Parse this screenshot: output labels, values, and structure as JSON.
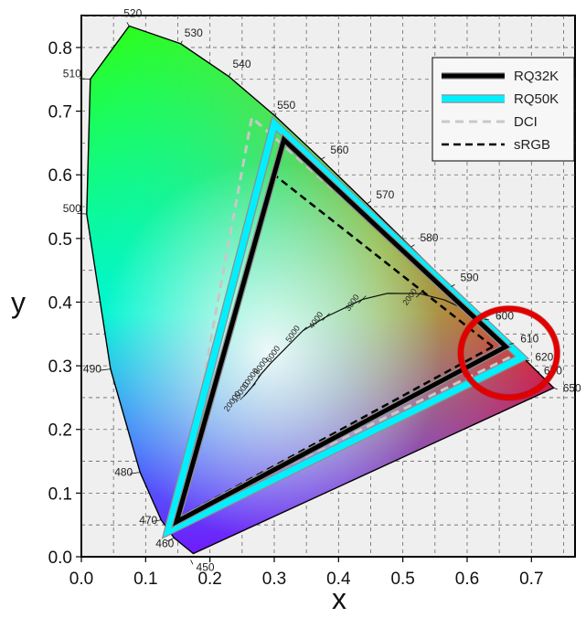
{
  "chart_data": {
    "type": "line",
    "xlabel": "x",
    "ylabel": "y",
    "xlim": [
      0.0,
      0.75
    ],
    "ylim": [
      0.0,
      0.85
    ],
    "xticks": [
      "0.0",
      "0.1",
      "0.2",
      "0.3",
      "0.4",
      "0.5",
      "0.6",
      "0.7"
    ],
    "yticks": [
      "0.0",
      "0.1",
      "0.2",
      "0.3",
      "0.4",
      "0.5",
      "0.6",
      "0.7",
      "0.8"
    ],
    "grid": true,
    "legend_position": "top-right",
    "series": [
      {
        "name": "RQ32K",
        "style": "solid",
        "color": "#000000",
        "points": [
          [
            0.66,
            0.33
          ],
          [
            0.315,
            0.655
          ],
          [
            0.148,
            0.055
          ]
        ]
      },
      {
        "name": "RQ50K",
        "style": "solid",
        "color": "#00f0ff",
        "points": [
          [
            0.685,
            0.313
          ],
          [
            0.3,
            0.68
          ],
          [
            0.135,
            0.04
          ]
        ]
      },
      {
        "name": "DCI",
        "style": "dashed",
        "color": "#c8c8c8",
        "points": [
          [
            0.68,
            0.32
          ],
          [
            0.265,
            0.69
          ],
          [
            0.15,
            0.06
          ]
        ]
      },
      {
        "name": "sRGB",
        "style": "dashed",
        "color": "#000000",
        "points": [
          [
            0.64,
            0.33
          ],
          [
            0.3,
            0.6
          ],
          [
            0.15,
            0.06
          ]
        ]
      }
    ],
    "spectral_locus": [
      [
        0.1741,
        0.005
      ],
      [
        0.144,
        0.0297
      ],
      [
        0.1241,
        0.0578
      ],
      [
        0.0913,
        0.1327
      ],
      [
        0.0454,
        0.295
      ],
      [
        0.0082,
        0.5384
      ],
      [
        0.0139,
        0.7502
      ],
      [
        0.0743,
        0.8338
      ],
      [
        0.1547,
        0.8059
      ],
      [
        0.2296,
        0.7543
      ],
      [
        0.3016,
        0.6923
      ],
      [
        0.3731,
        0.6245
      ],
      [
        0.4441,
        0.5547
      ],
      [
        0.5125,
        0.4866
      ],
      [
        0.5752,
        0.4242
      ],
      [
        0.627,
        0.3725
      ],
      [
        0.6658,
        0.334
      ],
      [
        0.6915,
        0.3083
      ],
      [
        0.7079,
        0.292
      ],
      [
        0.7347,
        0.2653
      ]
    ],
    "wavelength_labels": [
      {
        "label": "450",
        "x": 0.17,
        "y": -0.005
      },
      {
        "label": "460",
        "x": 0.144,
        "y": 0.0297
      },
      {
        "label": "470",
        "x": 0.124,
        "y": 0.0578
      },
      {
        "label": "480",
        "x": 0.0913,
        "y": 0.1327
      },
      {
        "label": "490",
        "x": 0.0454,
        "y": 0.295
      },
      {
        "label": "500",
        "x": 0.0082,
        "y": 0.5384
      },
      {
        "label": "510",
        "x": 0.0139,
        "y": 0.7502
      },
      {
        "label": "520",
        "x": 0.0743,
        "y": 0.8338
      },
      {
        "label": "530",
        "x": 0.1547,
        "y": 0.8059
      },
      {
        "label": "540",
        "x": 0.2296,
        "y": 0.7543
      },
      {
        "label": "550",
        "x": 0.3016,
        "y": 0.6923
      },
      {
        "label": "560",
        "x": 0.3731,
        "y": 0.6245
      },
      {
        "label": "570",
        "x": 0.4441,
        "y": 0.5547
      },
      {
        "label": "580",
        "x": 0.5125,
        "y": 0.4866
      },
      {
        "label": "590",
        "x": 0.5752,
        "y": 0.4242
      },
      {
        "label": "600",
        "x": 0.627,
        "y": 0.3725
      },
      {
        "label": "610",
        "x": 0.6658,
        "y": 0.334
      },
      {
        "label": "620",
        "x": 0.6915,
        "y": 0.3083
      },
      {
        "label": "630",
        "x": 0.7079,
        "y": 0.292
      },
      {
        "label": "650",
        "x": 0.7347,
        "y": 0.2653
      }
    ],
    "planckian_locus": [
      [
        0.2526,
        0.2522
      ],
      [
        0.2653,
        0.2665
      ],
      [
        0.2806,
        0.2883
      ],
      [
        0.2952,
        0.3048
      ],
      [
        0.3137,
        0.3235
      ],
      [
        0.3447,
        0.3553
      ],
      [
        0.3805,
        0.3768
      ],
      [
        0.4369,
        0.4041
      ],
      [
        0.4762,
        0.4137
      ],
      [
        0.5267,
        0.4133
      ],
      [
        0.5647,
        0.4034
      ],
      [
        0.5981,
        0.3882
      ]
    ],
    "cct_labels": [
      {
        "label": "20000",
        "x": 0.2526,
        "y": 0.2522
      },
      {
        "label": "15000",
        "x": 0.2653,
        "y": 0.2665
      },
      {
        "label": "10000",
        "x": 0.2806,
        "y": 0.2883
      },
      {
        "label": "8000",
        "x": 0.2952,
        "y": 0.3048
      },
      {
        "label": "6000",
        "x": 0.3137,
        "y": 0.3235
      },
      {
        "label": "5000",
        "x": 0.3447,
        "y": 0.3553
      },
      {
        "label": "4000",
        "x": 0.3805,
        "y": 0.3768
      },
      {
        "label": "3000",
        "x": 0.4369,
        "y": 0.4041
      },
      {
        "label": "2000",
        "x": 0.5267,
        "y": 0.4133
      }
    ],
    "highlight": {
      "shape": "circle",
      "color": "#e00000",
      "center": [
        0.665,
        0.32
      ],
      "radius_x_units": 0.075
    }
  }
}
